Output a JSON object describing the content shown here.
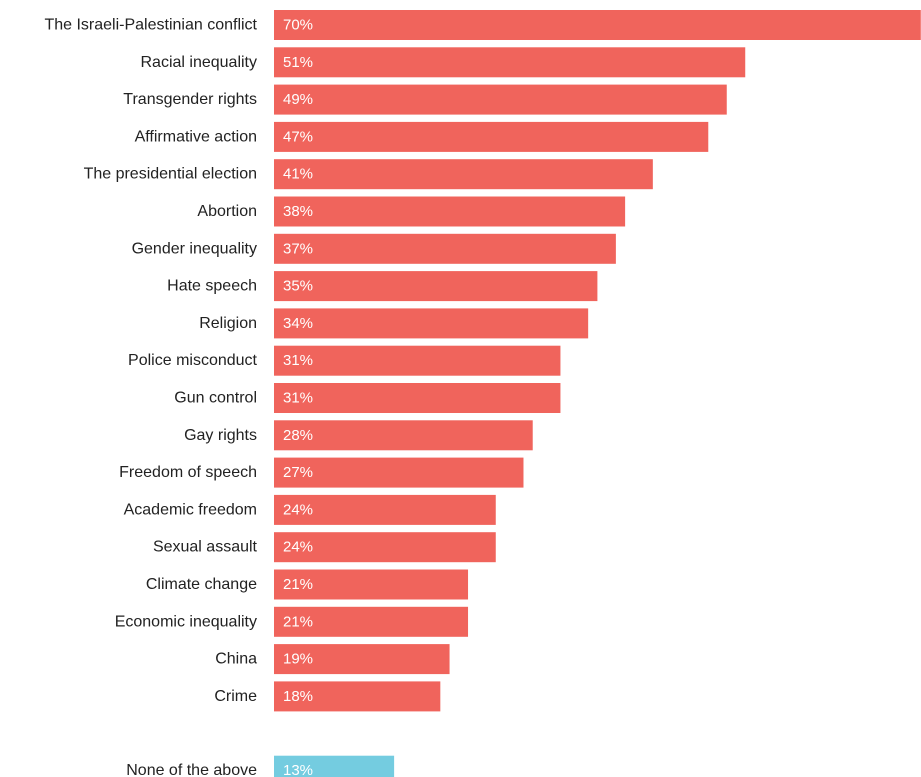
{
  "chart_data": {
    "type": "bar",
    "orientation": "horizontal",
    "title": "",
    "xlabel": "",
    "ylabel": "",
    "unit": "%",
    "grid": false,
    "legend": "none",
    "colors": {
      "main": "#f0645c",
      "other": "#74cce0",
      "label_text": "#222222",
      "value_text": "#ffffff"
    },
    "bars": [
      {
        "label": "The Israeli-Palestinian conflict",
        "value": 70,
        "value_label": "70%",
        "group": "main"
      },
      {
        "label": "Racial inequality",
        "value": 51,
        "value_label": "51%",
        "group": "main"
      },
      {
        "label": "Transgender rights",
        "value": 49,
        "value_label": "49%",
        "group": "main"
      },
      {
        "label": "Affirmative action",
        "value": 47,
        "value_label": "47%",
        "group": "main"
      },
      {
        "label": "The presidential election",
        "value": 41,
        "value_label": "41%",
        "group": "main"
      },
      {
        "label": "Abortion",
        "value": 38,
        "value_label": "38%",
        "group": "main"
      },
      {
        "label": "Gender inequality",
        "value": 37,
        "value_label": "37%",
        "group": "main"
      },
      {
        "label": "Hate speech",
        "value": 35,
        "value_label": "35%",
        "group": "main"
      },
      {
        "label": "Religion",
        "value": 34,
        "value_label": "34%",
        "group": "main"
      },
      {
        "label": "Police misconduct",
        "value": 31,
        "value_label": "31%",
        "group": "main"
      },
      {
        "label": "Gun control",
        "value": 31,
        "value_label": "31%",
        "group": "main"
      },
      {
        "label": "Gay rights",
        "value": 28,
        "value_label": "28%",
        "group": "main"
      },
      {
        "label": "Freedom of speech",
        "value": 27,
        "value_label": "27%",
        "group": "main"
      },
      {
        "label": "Academic freedom",
        "value": 24,
        "value_label": "24%",
        "group": "main"
      },
      {
        "label": "Sexual assault",
        "value": 24,
        "value_label": "24%",
        "group": "main"
      },
      {
        "label": "Climate change",
        "value": 21,
        "value_label": "21%",
        "group": "main"
      },
      {
        "label": "Economic inequality",
        "value": 21,
        "value_label": "21%",
        "group": "main"
      },
      {
        "label": "China",
        "value": 19,
        "value_label": "19%",
        "group": "main"
      },
      {
        "label": "Crime",
        "value": 18,
        "value_label": "18%",
        "group": "main"
      },
      {
        "label": "None of the above",
        "value": 13,
        "value_label": "13%",
        "group": "other"
      }
    ]
  }
}
